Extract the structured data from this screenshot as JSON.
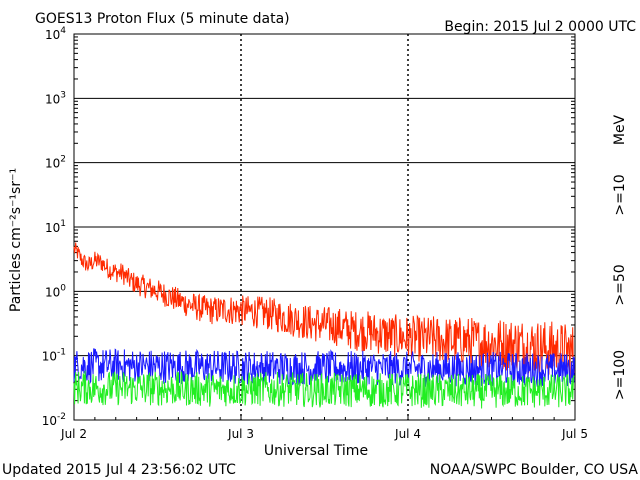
{
  "header": {
    "title": "GOES13 Proton Flux (5 minute data)",
    "begin": "Begin: 2015 Jul 2 0000 UTC"
  },
  "footer": {
    "updated": "Updated 2015 Jul  4 23:56:02 UTC",
    "credit": "NOAA/SWPC Boulder, CO USA"
  },
  "chart_data": {
    "type": "line",
    "xlabel": "Universal Time",
    "ylabel": "Particles cm⁻²s⁻¹sr⁻¹",
    "y_scale": "log",
    "ylim": [
      0.01,
      10000
    ],
    "xlim_hours": [
      0,
      72
    ],
    "x_ticks": [
      {
        "label": "Jul 2",
        "hours": 0
      },
      {
        "label": "Jul 3",
        "hours": 24
      },
      {
        "label": "Jul 4",
        "hours": 48
      },
      {
        "label": "Jul 5",
        "hours": 72
      }
    ],
    "y_ticks": [
      {
        "base": "10",
        "exp": "-2",
        "value": 0.01
      },
      {
        "base": "10",
        "exp": "-1",
        "value": 0.1
      },
      {
        "base": "10",
        "exp": "0",
        "value": 1
      },
      {
        "base": "10",
        "exp": "1",
        "value": 10
      },
      {
        "base": "10",
        "exp": "2",
        "value": 100
      },
      {
        "base": "10",
        "exp": "3",
        "value": 1000
      },
      {
        "base": "10",
        "exp": "4",
        "value": 10000
      }
    ],
    "grid": "horizontal at decades, dashed vertical at day boundaries",
    "legend_unit": "MeV",
    "series": [
      {
        "name": ">=10",
        "color": "#ff2a00",
        "hours": [
          0,
          0.5,
          1,
          2,
          3,
          4,
          5,
          6,
          7,
          8,
          9,
          10,
          11,
          12,
          13,
          14,
          15,
          16,
          17,
          18,
          20,
          22,
          24,
          26,
          28,
          30,
          32,
          34,
          36,
          38,
          40,
          42,
          44,
          46,
          48,
          50,
          52,
          54,
          56,
          58,
          60,
          62,
          64,
          66,
          68,
          70,
          72
        ],
        "values": [
          4.5,
          4.0,
          3.2,
          2.5,
          3.0,
          2.8,
          2.2,
          2.0,
          1.9,
          1.5,
          1.3,
          1.2,
          1.1,
          1.0,
          0.9,
          0.8,
          0.72,
          0.65,
          0.6,
          0.55,
          0.5,
          0.52,
          0.5,
          0.48,
          0.45,
          0.4,
          0.36,
          0.32,
          0.3,
          0.28,
          0.25,
          0.24,
          0.22,
          0.2,
          0.19,
          0.18,
          0.18,
          0.17,
          0.17,
          0.16,
          0.16,
          0.15,
          0.15,
          0.14,
          0.13,
          0.12,
          0.11
        ]
      },
      {
        "name": ">=50",
        "color": "#1a1aff",
        "hours": [
          0,
          6,
          12,
          18,
          24,
          30,
          36,
          42,
          48,
          54,
          60,
          66,
          72
        ],
        "values": [
          0.07,
          0.07,
          0.068,
          0.067,
          0.066,
          0.065,
          0.064,
          0.064,
          0.063,
          0.062,
          0.062,
          0.061,
          0.06
        ]
      },
      {
        "name": ">=100",
        "color": "#22ee22",
        "hours": [
          0,
          6,
          12,
          18,
          24,
          30,
          36,
          42,
          48,
          54,
          60,
          66,
          72
        ],
        "values": [
          0.032,
          0.031,
          0.031,
          0.03,
          0.03,
          0.03,
          0.029,
          0.029,
          0.029,
          0.028,
          0.028,
          0.028,
          0.028
        ]
      }
    ]
  }
}
